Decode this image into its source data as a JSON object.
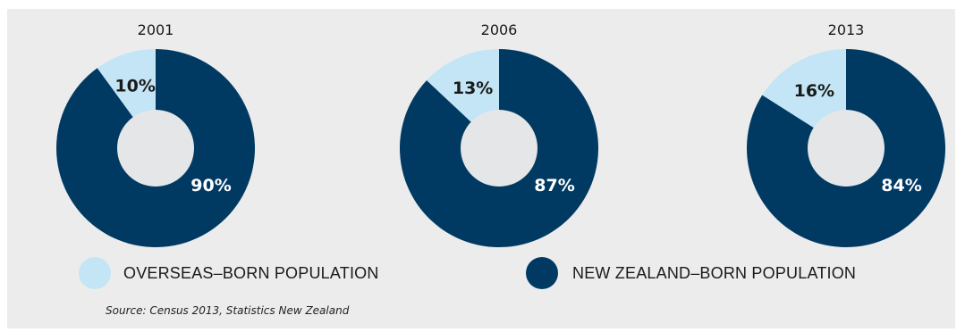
{
  "chart_data": [
    {
      "type": "pie",
      "title": "2001",
      "slices": [
        {
          "name": "OVERSEAS–BORN POPULATION",
          "value": 10,
          "label": "10%"
        },
        {
          "name": "NEW ZEALAND–BORN POPULATION",
          "value": 90,
          "label": "90%"
        }
      ]
    },
    {
      "type": "pie",
      "title": "2006",
      "slices": [
        {
          "name": "OVERSEAS–BORN POPULATION",
          "value": 13,
          "label": "13%"
        },
        {
          "name": "NEW ZEALAND–BORN POPULATION",
          "value": 87,
          "label": "87%"
        }
      ]
    },
    {
      "type": "pie",
      "title": "2013",
      "slices": [
        {
          "name": "OVERSEAS–BORN POPULATION",
          "value": 16,
          "label": "16%"
        },
        {
          "name": "NEW ZEALAND–BORN POPULATION",
          "value": 84,
          "label": "84%"
        }
      ]
    }
  ],
  "legend": {
    "overseas": {
      "label": "OVERSEAS–BORN POPULATION",
      "color": "#c3e5f5"
    },
    "nz": {
      "label": "NEW ZEALAND–BORN POPULATION",
      "color": "#003a63"
    }
  },
  "colors": {
    "background": "#ececec",
    "hole": "#e5e6e8",
    "label_light_bg": "#1a1a1a",
    "label_dark_bg": "#ffffff"
  },
  "source": "Source: Census 2013, Statistics New Zealand"
}
